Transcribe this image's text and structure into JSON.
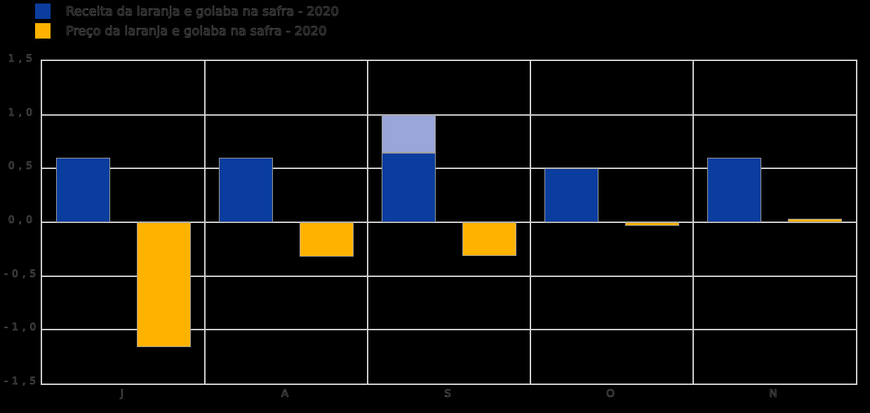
{
  "background": "#000000",
  "legend": {
    "items": [
      {
        "label": "Receita da laranja e goiaba na safra - 2020",
        "color": "#0b3d9e"
      },
      {
        "label": "Preço da laranja e goiaba na safra - 2020",
        "color": "#ffb300"
      }
    ]
  },
  "chart_data": {
    "type": "bar",
    "title": "",
    "xlabel": "",
    "ylabel": "",
    "categories": [
      "J",
      "A",
      "S",
      "O",
      "N"
    ],
    "series": [
      {
        "name": "Receita da laranja e goiaba na safra - 2020",
        "color": "#0b3d9e",
        "values": [
          0.6,
          0.6,
          0.645,
          0.5,
          0.6
        ]
      },
      {
        "name": "Preço da laranja e goiaba na safra - 2020",
        "color": "#ffb300",
        "values": [
          -1.16,
          -0.32,
          -0.31,
          -0.03,
          0.03
        ]
      }
    ],
    "stacked_extra": {
      "series": 0,
      "category_index": 2,
      "value": 0.355,
      "color": "#9aa5d8",
      "note": "light-blue segment stacked on top of third blue bar, total 1.0"
    },
    "ylim": [
      -1.5,
      1.5
    ],
    "ytick_labels": [
      "1,5",
      "1,0",
      "0,5",
      "0,0",
      "-0,5",
      "-1,0",
      "-1,5"
    ],
    "grid": true,
    "gridline_color": "#d2d2d2",
    "legend_position": "top-left"
  },
  "colors": {
    "blue": "#0b3d9e",
    "light_blue": "#9aa5d8",
    "orange": "#ffb300",
    "grid": "#d2d2d2",
    "text": "#000000"
  }
}
